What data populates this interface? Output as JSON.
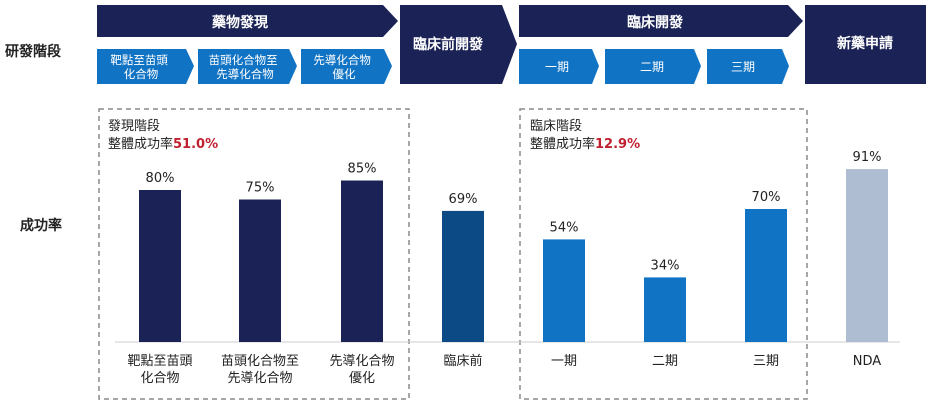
{
  "row_labels": {
    "stage": "研發階段",
    "rate": "成功率"
  },
  "pipeline": {
    "discovery": {
      "label": "藥物發現",
      "sub": [
        "靶點至苗頭\n化合物",
        "苗頭化合物至\n先導化合物",
        "先導化合物\n優化"
      ]
    },
    "preclinical": {
      "label": "臨床前開發"
    },
    "clinical": {
      "label": "臨床開發",
      "sub": [
        "一期",
        "二期",
        "三期"
      ]
    },
    "nda": {
      "label": "新藥申請"
    }
  },
  "groups": {
    "discovery": {
      "title": "發現階段",
      "subtitle": "整體成功率",
      "value": "51.0%"
    },
    "clinical": {
      "title": "臨床階段",
      "subtitle": "整體成功率",
      "value": "12.9%"
    }
  },
  "colors": {
    "navy": "#1b2356",
    "mid": "#0b4a85",
    "blue": "#1173c4",
    "light": "#aebdd1",
    "red": "#c0202f",
    "white": "#ffffff"
  },
  "chart_data": {
    "type": "bar",
    "categories": [
      "靶點至苗頭\n化合物",
      "苗頭化合物至\n先導化合物",
      "先導化合物\n優化",
      "臨床前",
      "一期",
      "二期",
      "三期",
      "NDA"
    ],
    "values": [
      80,
      75,
      85,
      69,
      54,
      34,
      70,
      91
    ],
    "value_labels": [
      "80%",
      "75%",
      "85%",
      "69%",
      "54%",
      "34%",
      "70%",
      "91%"
    ],
    "bar_colors": [
      "#1b2356",
      "#1b2356",
      "#1b2356",
      "#0b4a85",
      "#1173c4",
      "#1173c4",
      "#1173c4",
      "#aebdd1"
    ],
    "ylim": [
      0,
      100
    ],
    "grid": false
  }
}
